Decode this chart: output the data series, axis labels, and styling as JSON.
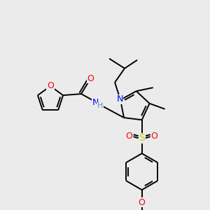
{
  "bg_color": "#ebebeb",
  "bond_color": "#000000",
  "atom_colors": {
    "O": "#ff0000",
    "N": "#0000ff",
    "S": "#cccc00",
    "H": "#6699aa",
    "C": "#000000"
  }
}
